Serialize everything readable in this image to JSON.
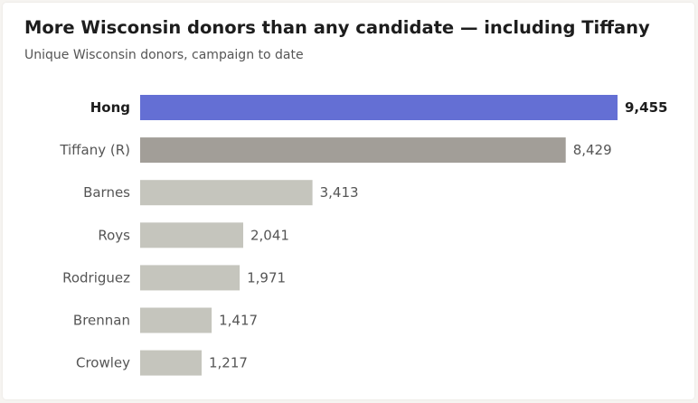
{
  "chart_data": {
    "type": "bar",
    "orientation": "horizontal",
    "title": "More Wisconsin donors than any candidate — including Tiffany",
    "subtitle": "Unique Wisconsin donors, campaign to date",
    "categories": [
      "Hong",
      "Tiffany (R)",
      "Barnes",
      "Roys",
      "Rodriguez",
      "Brennan",
      "Crowley"
    ],
    "values": [
      9455,
      8429,
      3413,
      2041,
      1971,
      1417,
      1217
    ],
    "value_labels": [
      "9,455",
      "8,429",
      "3,413",
      "2,041",
      "1,971",
      "1,417",
      "1,217"
    ],
    "highlight": "Hong",
    "colors": {
      "highlight": "#646fd4",
      "opponent": "#a29e98",
      "others": "#c5c5bd"
    },
    "bar_colors": [
      "highlight",
      "opponent",
      "others",
      "others",
      "others",
      "others",
      "others"
    ],
    "xlim": [
      0,
      9455
    ],
    "grid": false,
    "legend": "none"
  }
}
